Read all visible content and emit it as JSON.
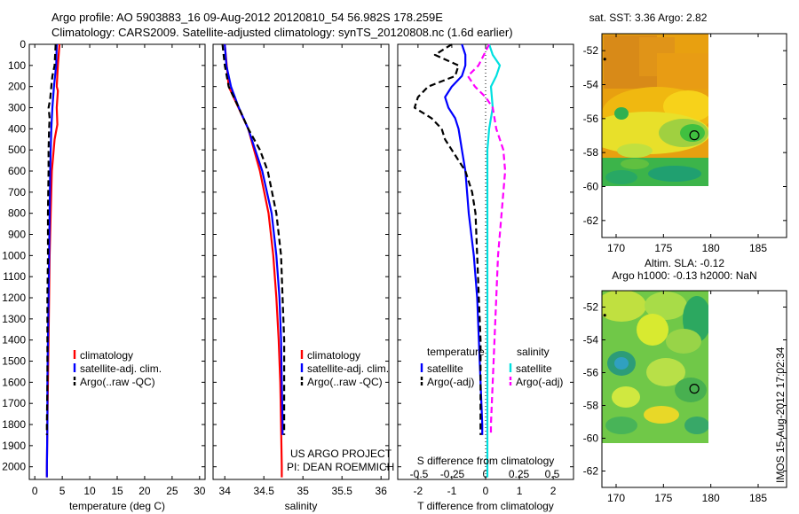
{
  "header": {
    "line1": "Argo profile: AO 5903883_16 09-Aug-2012 20120810_54 56.982S 178.259E",
    "line2": "Climatology: CARS2009. Satellite-adjusted climatology: synTS_20120808.nc (1.6d earlier)"
  },
  "stamp": "IMOS 15-Aug-2012 17:02:34",
  "depth_ticks": [
    "0",
    "100",
    "200",
    "300",
    "400",
    "500",
    "600",
    "700",
    "800",
    "900",
    "1000",
    "1100",
    "1200",
    "1300",
    "1400",
    "1500",
    "1600",
    "1700",
    "1800",
    "1900",
    "2000"
  ],
  "colors": {
    "climatology": "#ff0000",
    "satellite": "#0000ff",
    "argo": "#000000",
    "sat_salinity": "#00e0e0",
    "argo_salinity": "#ff00ff",
    "marker": "#000000"
  },
  "chart_data": [
    {
      "type": "line",
      "xlabel": "temperature (deg C)",
      "ylabel": "",
      "xlim": [
        -1,
        31
      ],
      "ylim": [
        2060,
        0
      ],
      "x_ticks": [
        "0",
        "5",
        "10",
        "15",
        "20",
        "25",
        "30"
      ],
      "legend_position": "bottom-center",
      "series": [
        {
          "name": "climatology",
          "style": "solid",
          "color_key": "climatology",
          "depth": [
            0,
            100,
            200,
            220,
            300,
            380,
            450,
            600,
            800,
            1000,
            1200,
            1400,
            1600,
            1800,
            2000,
            2050
          ],
          "values": [
            4.5,
            4.2,
            4.0,
            4.2,
            4.0,
            4.1,
            3.6,
            3.1,
            2.9,
            2.7,
            2.6,
            2.5,
            2.4,
            2.3,
            2.2,
            2.2
          ]
        },
        {
          "name": "satellite-adj. clim.",
          "style": "solid",
          "color_key": "satellite",
          "depth": [
            0,
            100,
            200,
            300,
            400,
            500,
            600,
            800,
            1000,
            1200,
            1400,
            1600,
            1800,
            2000,
            2050
          ],
          "values": [
            4.0,
            3.9,
            3.5,
            3.2,
            3.0,
            2.9,
            2.8,
            2.7,
            2.6,
            2.5,
            2.4,
            2.3,
            2.3,
            2.2,
            2.2
          ]
        },
        {
          "name": "Argo(..raw -QC)",
          "style": "dashed",
          "color_key": "argo",
          "depth": [
            0,
            100,
            150,
            200,
            260,
            300,
            350,
            400,
            500,
            600,
            800,
            1000,
            1200,
            1400,
            1600,
            1800,
            1850
          ],
          "values": [
            3.8,
            3.6,
            3.2,
            3.0,
            2.8,
            2.5,
            2.7,
            2.6,
            2.5,
            2.5,
            2.4,
            2.4,
            2.3,
            2.3,
            2.3,
            2.2,
            2.2
          ]
        }
      ]
    },
    {
      "type": "line",
      "xlabel": "salinity",
      "ylabel": "",
      "xlim": [
        33.85,
        36.1
      ],
      "ylim": [
        2060,
        0
      ],
      "x_ticks": [
        "34",
        "34.5",
        "35",
        "35.5",
        "36"
      ],
      "legend_position": "bottom-right",
      "series": [
        {
          "name": "climatology",
          "style": "solid",
          "color_key": "climatology",
          "depth": [
            0,
            200,
            400,
            600,
            800,
            1000,
            1200,
            1400,
            1600,
            1800,
            2000,
            2050
          ],
          "values": [
            34.0,
            34.05,
            34.3,
            34.45,
            34.56,
            34.62,
            34.66,
            34.69,
            34.71,
            34.72,
            34.73,
            34.73
          ]
        },
        {
          "name": "satellite-adj. clim.",
          "style": "solid",
          "color_key": "satellite",
          "depth": [
            0,
            100,
            200,
            300,
            400,
            600,
            800,
            1000,
            1200,
            1400,
            1600,
            1800,
            1850
          ],
          "values": [
            34.0,
            34.02,
            34.08,
            34.18,
            34.3,
            34.48,
            34.6,
            34.66,
            34.7,
            34.72,
            34.73,
            34.74,
            34.74
          ]
        },
        {
          "name": "Argo(..raw -QC)",
          "style": "dashed",
          "color_key": "argo",
          "depth": [
            0,
            100,
            200,
            300,
            400,
            500,
            600,
            800,
            1000,
            1200,
            1400,
            1600,
            1800,
            1850
          ],
          "values": [
            33.97,
            34.0,
            34.05,
            34.18,
            34.3,
            34.45,
            34.55,
            34.66,
            34.72,
            34.74,
            34.76,
            34.76,
            34.76,
            34.76
          ]
        }
      ]
    },
    {
      "type": "line",
      "xlabel": "T difference from climatology",
      "xlabel2": "S difference from climatology",
      "ylabel": "",
      "xlim": [
        -2.6,
        2.6
      ],
      "ylim": [
        2060,
        0
      ],
      "x_ticks": [
        "-2",
        "-1",
        "0",
        "1",
        "2"
      ],
      "x2_ticks": [
        "-0.5",
        "-0.25",
        "0",
        "0.25",
        "0.5"
      ],
      "legend_position": "bottom-center",
      "legend_heads": [
        "temperature",
        "salinity"
      ],
      "series": [
        {
          "name": "satellite",
          "group": "temperature",
          "style": "solid",
          "color_key": "satellite",
          "depth": [
            0,
            50,
            100,
            150,
            200,
            250,
            300,
            350,
            400,
            500,
            600,
            700,
            800,
            1000,
            1200,
            1400,
            1600,
            1800,
            1850
          ],
          "values": [
            -0.7,
            -0.6,
            -0.6,
            -0.7,
            -1.0,
            -1.2,
            -1.1,
            -0.9,
            -0.8,
            -0.7,
            -0.6,
            -0.55,
            -0.5,
            -0.35,
            -0.25,
            -0.2,
            -0.15,
            -0.1,
            -0.1
          ]
        },
        {
          "name": "Argo(-adj)",
          "group": "temperature",
          "style": "dashed",
          "color_key": "argo",
          "depth": [
            0,
            50,
            100,
            150,
            200,
            250,
            300,
            350,
            400,
            450,
            500,
            600,
            700,
            800,
            1000,
            1200,
            1400,
            1600,
            1800,
            1850
          ],
          "values": [
            -1.0,
            -1.5,
            -0.8,
            -0.9,
            -1.7,
            -2.0,
            -2.1,
            -1.6,
            -1.3,
            -1.2,
            -1.0,
            -0.6,
            -0.4,
            -0.3,
            -0.25,
            -0.2,
            -0.15,
            -0.15,
            -0.15,
            -0.15
          ]
        },
        {
          "name": "satellite",
          "group": "salinity",
          "style": "solid",
          "color_key": "sat_salinity",
          "depth": [
            0,
            50,
            100,
            150,
            200,
            300,
            400,
            500,
            600,
            800,
            1000,
            1200,
            1400,
            1600,
            1800,
            2000,
            2050
          ],
          "values": [
            0.1,
            0.2,
            0.4,
            0.3,
            0.15,
            0.2,
            0.1,
            0.05,
            0.05,
            0.05,
            0.05,
            0.05,
            0.05,
            0.05,
            0.05,
            0.05,
            0.05
          ]
        },
        {
          "name": "Argo(-adj)",
          "group": "salinity",
          "style": "dashed",
          "color_key": "argo_salinity",
          "depth": [
            0,
            100,
            150,
            200,
            250,
            300,
            400,
            500,
            600,
            700,
            800,
            1000,
            1200,
            1400,
            1600,
            1800,
            1850
          ],
          "values": [
            0.1,
            -0.2,
            -0.5,
            -0.3,
            0.0,
            0.2,
            0.3,
            0.5,
            0.55,
            0.5,
            0.45,
            0.35,
            0.3,
            0.25,
            0.2,
            0.15,
            0.15
          ]
        }
      ]
    },
    {
      "type": "heatmap",
      "title": "sat. SST: 3.36 Argo: 2.82",
      "xlim": [
        168.5,
        188
      ],
      "ylim": [
        -63,
        -51
      ],
      "x_ticks": [
        "170",
        "175",
        "180",
        "185"
      ],
      "y_ticks": [
        "-52",
        "-54",
        "-56",
        "-58",
        "-60",
        "-62"
      ],
      "data_extent": {
        "lon": [
          169,
          180
        ],
        "lat": [
          -60,
          -51
        ]
      },
      "marker": {
        "lon": 178.26,
        "lat": -56.98
      },
      "small_marker": {
        "lon": 168.8,
        "lat": -52.5
      }
    },
    {
      "type": "heatmap",
      "title": "Altim. SLA: -0.12",
      "title2": "Argo h1000: -0.13 h2000: NaN",
      "xlim": [
        168.5,
        188
      ],
      "ylim": [
        -63,
        -51
      ],
      "x_ticks": [
        "170",
        "175",
        "180",
        "185"
      ],
      "y_ticks": [
        "-52",
        "-54",
        "-56",
        "-58",
        "-60",
        "-62"
      ],
      "data_extent": {
        "lon": [
          169,
          180
        ],
        "lat": [
          -60,
          -51
        ]
      },
      "marker": {
        "lon": 178.26,
        "lat": -56.98
      },
      "small_marker": {
        "lon": 168.8,
        "lat": -52.5
      }
    }
  ],
  "credit": {
    "line1": "US ARGO PROJECT",
    "line2": "PI: DEAN ROEMMICH"
  }
}
